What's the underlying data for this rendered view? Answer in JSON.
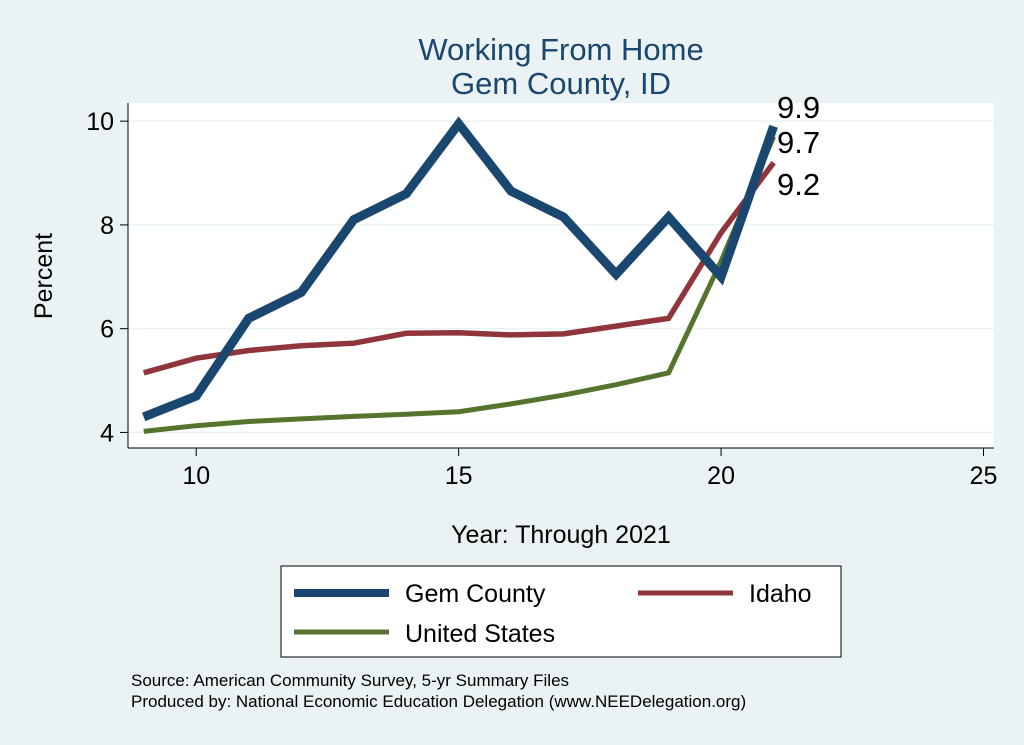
{
  "chart_data": {
    "type": "line",
    "title": "Working From Home",
    "subtitle": "Gem County, ID",
    "xlabel": "Year: Through 2021",
    "ylabel": "Percent",
    "xlim": [
      8.7,
      25.2
    ],
    "ylim": [
      3.7,
      10.35
    ],
    "xticks": [
      10,
      15,
      20,
      25
    ],
    "yticks": [
      4,
      6,
      8,
      10
    ],
    "grid": true,
    "legend_position": "bottom",
    "series": [
      {
        "name": "Gem County",
        "color": "#1a476f",
        "x": [
          9,
          10,
          11,
          12,
          13,
          14,
          15,
          16,
          17,
          18,
          19,
          20,
          21
        ],
        "values": [
          4.3,
          4.7,
          6.2,
          6.7,
          8.1,
          8.6,
          9.95,
          8.65,
          8.15,
          7.05,
          8.15,
          7.0,
          9.9
        ],
        "end_label": "9.9"
      },
      {
        "name": "Idaho",
        "color": "#90353b",
        "x": [
          9,
          10,
          11,
          12,
          13,
          14,
          15,
          16,
          17,
          18,
          19,
          20,
          21
        ],
        "values": [
          5.15,
          5.43,
          5.58,
          5.67,
          5.72,
          5.91,
          5.92,
          5.88,
          5.9,
          6.05,
          6.2,
          7.85,
          9.2
        ],
        "end_label": "9.2"
      },
      {
        "name": "United States",
        "color": "#55752f",
        "x": [
          9,
          10,
          11,
          12,
          13,
          14,
          15,
          16,
          17,
          18,
          19,
          20,
          21
        ],
        "values": [
          4.02,
          4.13,
          4.21,
          4.26,
          4.31,
          4.35,
          4.4,
          4.55,
          4.72,
          4.92,
          5.15,
          7.3,
          9.7
        ],
        "end_label": "9.7"
      }
    ]
  },
  "footer": {
    "source": "Source: American Community Survey, 5-yr Summary Files",
    "produced_by": "Produced by: National Economic Education Delegation (www.NEEDelegation.org)"
  },
  "colors": {
    "background": "#eaf2f3",
    "plot_background": "#ffffff",
    "title": "#1a476f"
  }
}
